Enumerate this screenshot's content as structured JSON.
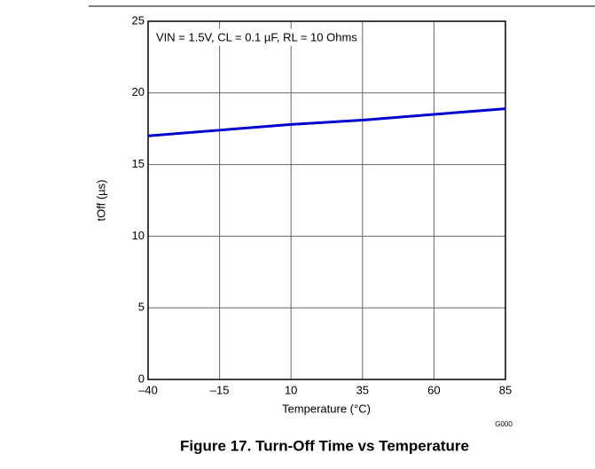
{
  "chart_data": {
    "type": "line",
    "caption": "Figure 17. Turn-Off Time vs Temperature",
    "annotation": "VIN = 1.5V, CL = 0.1 µF, RL = 10 Ohms",
    "xlabel": "Temperature (°C)",
    "ylabel": "tOff (µs)",
    "code": "G000",
    "x": [
      -40,
      -15,
      10,
      35,
      60,
      85
    ],
    "series": [
      {
        "name": "tOff",
        "color": "#0000cc",
        "values": [
          17.0,
          17.4,
          17.8,
          18.1,
          18.5,
          18.9
        ]
      }
    ],
    "xlim": [
      -40,
      85
    ],
    "xticks": [
      {
        "value": -40,
        "label": "–40"
      },
      {
        "value": -15,
        "label": "–15"
      },
      10,
      35,
      60,
      85
    ],
    "ylim": [
      0,
      25
    ],
    "yticks": [
      0,
      5,
      10,
      15,
      20,
      25
    ],
    "grid": true
  }
}
